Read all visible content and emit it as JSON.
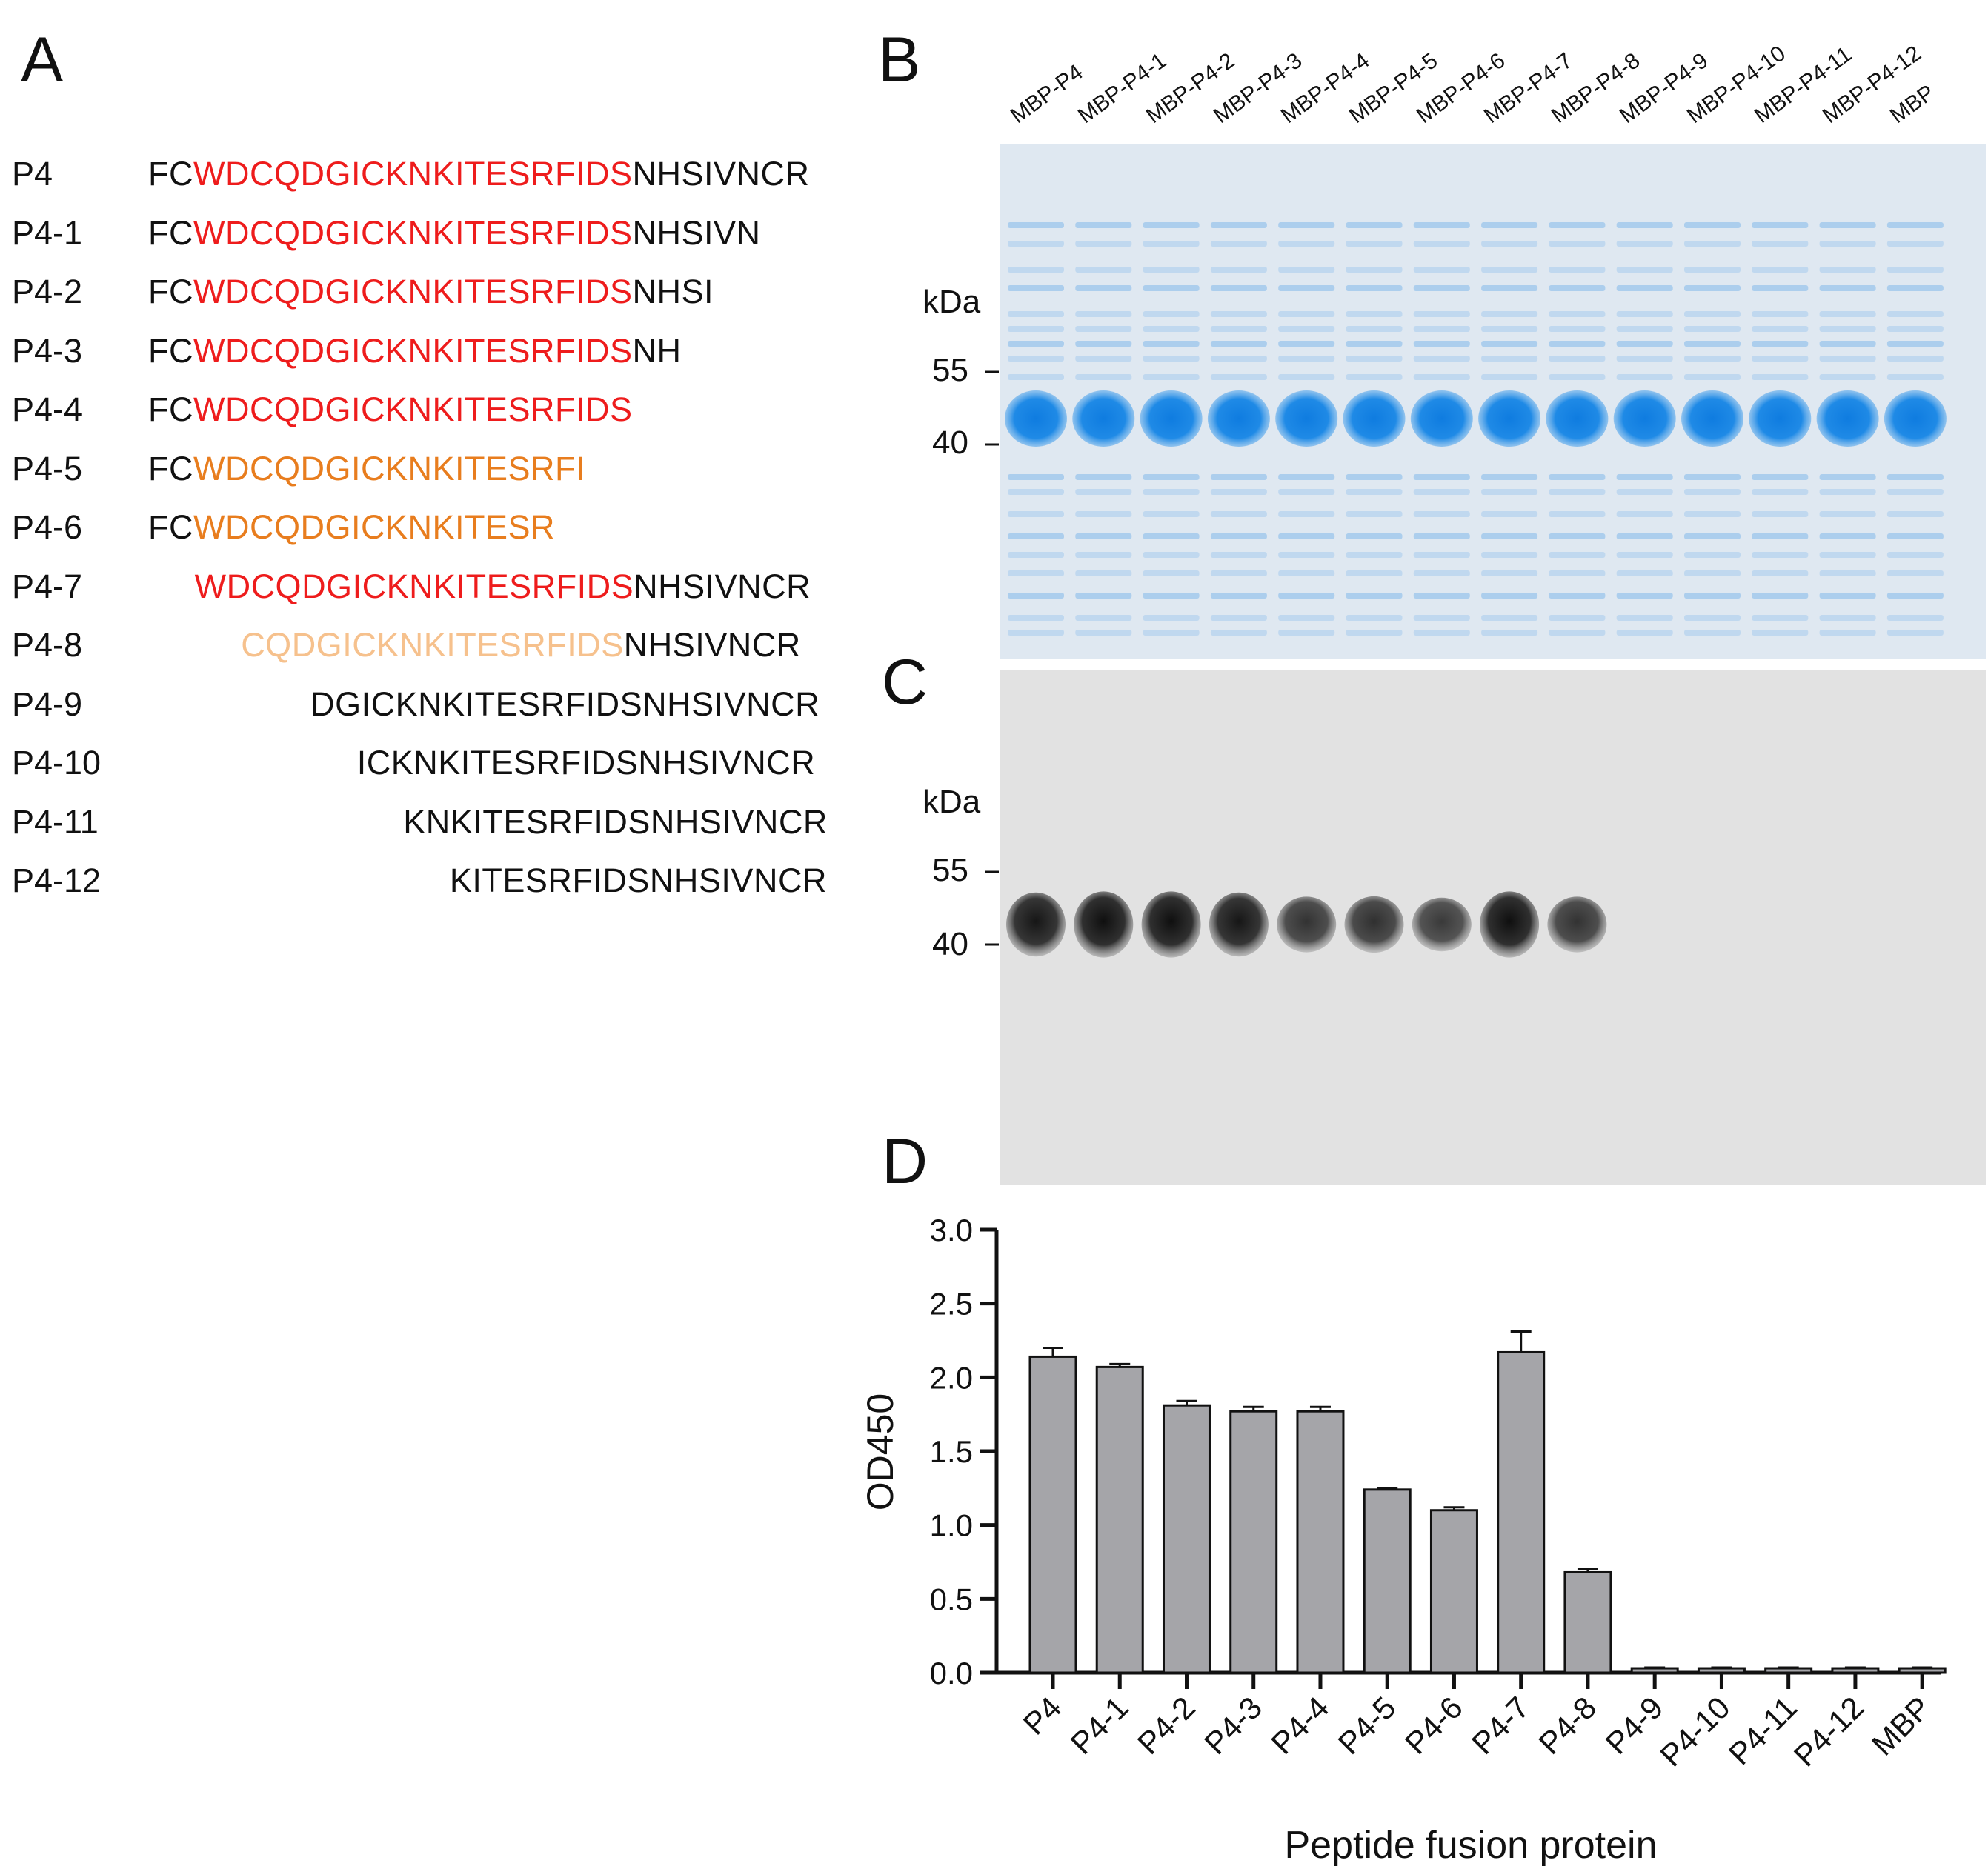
{
  "panel_labels": {
    "a": "A",
    "b": "B",
    "c": "C",
    "d": "D"
  },
  "sequences": [
    {
      "name": "P4",
      "start": 0,
      "segments": [
        {
          "t": "FC",
          "c": "black"
        },
        {
          "t": "WDCQDGICKNKITESRFIDS",
          "c": "red"
        },
        {
          "t": "NHSIVNCR",
          "c": "black"
        }
      ]
    },
    {
      "name": "P4-1",
      "start": 0,
      "segments": [
        {
          "t": "FC",
          "c": "black"
        },
        {
          "t": "WDCQDGICKNKITESRFIDS",
          "c": "red"
        },
        {
          "t": "NHSIVN",
          "c": "black"
        }
      ]
    },
    {
      "name": "P4-2",
      "start": 0,
      "segments": [
        {
          "t": "FC",
          "c": "black"
        },
        {
          "t": "WDCQDGICKNKITESRFIDS",
          "c": "red"
        },
        {
          "t": "NHSI",
          "c": "black"
        }
      ]
    },
    {
      "name": "P4-3",
      "start": 0,
      "segments": [
        {
          "t": "FC",
          "c": "black"
        },
        {
          "t": "WDCQDGICKNKITESRFIDS",
          "c": "red"
        },
        {
          "t": "NH",
          "c": "black"
        }
      ]
    },
    {
      "name": "P4-4",
      "start": 0,
      "segments": [
        {
          "t": "FC",
          "c": "black"
        },
        {
          "t": "WDCQDGICKNKITESRFIDS",
          "c": "red"
        }
      ]
    },
    {
      "name": "P4-5",
      "start": 0,
      "segments": [
        {
          "t": "FC",
          "c": "black"
        },
        {
          "t": "WDCQDGICKNKITESRFI",
          "c": "orange"
        }
      ]
    },
    {
      "name": "P4-6",
      "start": 0,
      "segments": [
        {
          "t": "FC",
          "c": "black"
        },
        {
          "t": "WDCQDGICKNKITESR",
          "c": "orange"
        }
      ]
    },
    {
      "name": "P4-7",
      "start": 2,
      "segments": [
        {
          "t": "WDCQDGICKNKITESRFIDS",
          "c": "red"
        },
        {
          "t": "NHSIVNCR",
          "c": "black"
        }
      ]
    },
    {
      "name": "P4-8",
      "start": 4,
      "segments": [
        {
          "t": "CQDGICKNKITESRFIDS",
          "c": "peach"
        },
        {
          "t": "NHSIVNCR",
          "c": "black"
        }
      ]
    },
    {
      "name": "P4-9",
      "start": 7,
      "segments": [
        {
          "t": "DGICKNKITESRFIDSNHSIVNCR",
          "c": "black"
        }
      ]
    },
    {
      "name": "P4-10",
      "start": 9,
      "segments": [
        {
          "t": "ICKNKITESRFIDSNHSIVNCR",
          "c": "black"
        }
      ]
    },
    {
      "name": "P4-11",
      "start": 11,
      "segments": [
        {
          "t": "KNKITESRFIDSNHSIVNCR",
          "c": "black"
        }
      ]
    },
    {
      "name": "P4-12",
      "start": 13,
      "segments": [
        {
          "t": "KITESRFIDSNHSIVNCR",
          "c": "black"
        }
      ]
    }
  ],
  "colors": {
    "black": "#111111",
    "red": "#ee1c1c",
    "orange": "#e87d1e",
    "peach": "#f6c18d",
    "bar": "#a5a5a9",
    "coomassie": "#2a8fe0",
    "gel_bg": "#dfe8f1",
    "blot_bg": "#e2e2e2"
  },
  "gel_lanes": [
    "MBP-P4",
    "MBP-P4-1",
    "MBP-P4-2",
    "MBP-P4-3",
    "MBP-P4-4",
    "MBP-P4-5",
    "MBP-P4-6",
    "MBP-P4-7",
    "MBP-P4-8",
    "MBP-P4-9",
    "MBP-P4-10",
    "MBP-P4-11",
    "MBP-P4-12",
    "MBP"
  ],
  "gel_b": {
    "unit": "kDa",
    "markers": [
      "55",
      "40"
    ]
  },
  "blot_c": {
    "unit": "kDa",
    "markers": [
      "55",
      "40"
    ],
    "band_intensity": [
      0.9,
      0.95,
      0.95,
      0.9,
      0.7,
      0.72,
      0.65,
      0.95,
      0.7,
      0,
      0,
      0,
      0,
      0
    ]
  },
  "chart_data": {
    "type": "bar",
    "title": "",
    "xlabel": "Peptide fusion protein",
    "ylabel": "OD450",
    "categories": [
      "P4",
      "P4-1",
      "P4-2",
      "P4-3",
      "P4-4",
      "P4-5",
      "P4-6",
      "P4-7",
      "P4-8",
      "P4-9",
      "P4-10",
      "P4-11",
      "P4-12",
      "MBP"
    ],
    "values": [
      2.14,
      2.07,
      1.81,
      1.77,
      1.77,
      1.24,
      1.1,
      2.17,
      0.68,
      0.03,
      0.03,
      0.03,
      0.03,
      0.03
    ],
    "errors": [
      0.06,
      0.02,
      0.03,
      0.03,
      0.03,
      0.01,
      0.02,
      0.14,
      0.02,
      0.005,
      0.005,
      0.005,
      0.005,
      0.005
    ],
    "ylim": [
      0,
      3.0
    ],
    "yticks": [
      "0.0",
      "0.5",
      "1.0",
      "1.5",
      "2.0",
      "2.5",
      "3.0"
    ]
  }
}
